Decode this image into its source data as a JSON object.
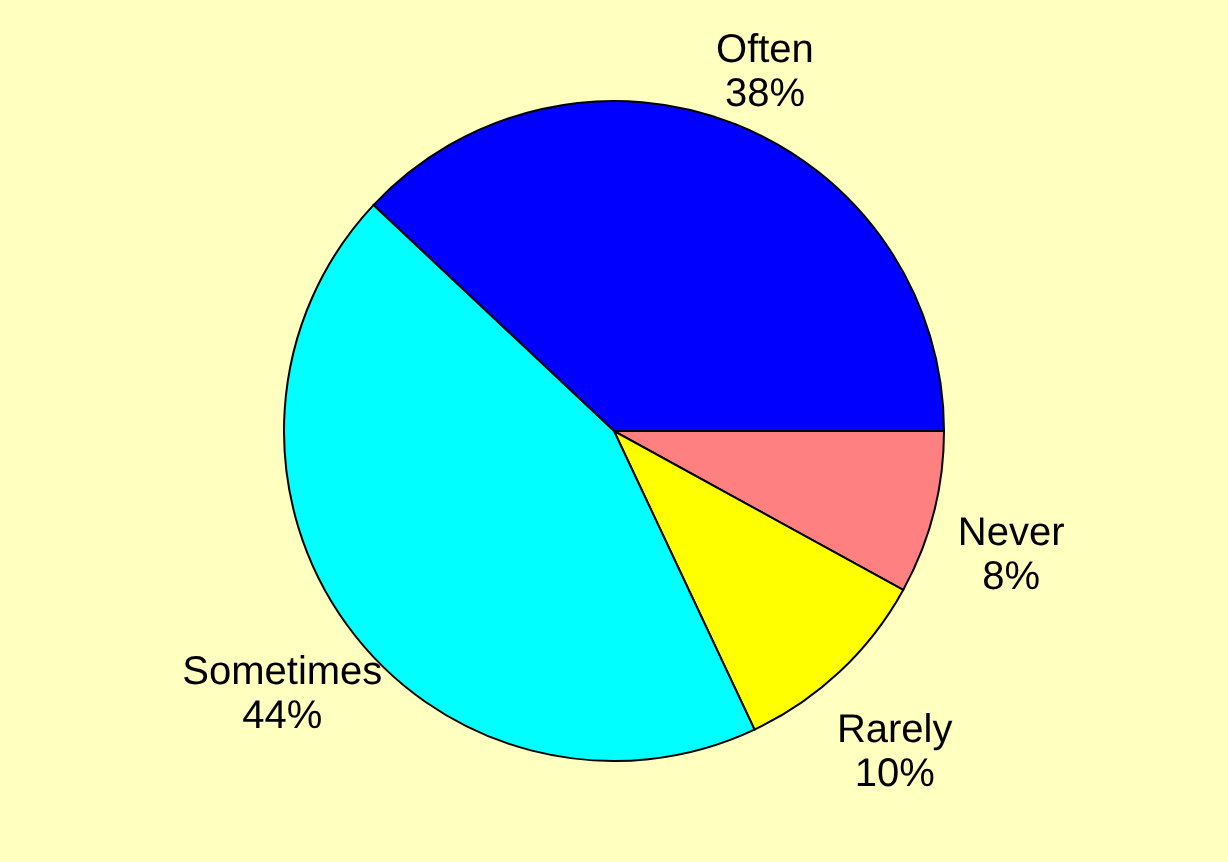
{
  "chart_data": {
    "type": "pie",
    "categories": [
      "Often",
      "Never",
      "Rarely",
      "Sometimes"
    ],
    "values": [
      38,
      8,
      10,
      44
    ],
    "colors": [
      "#0000ff",
      "#ff8080",
      "#ffff00",
      "#00ffff"
    ],
    "value_labels": [
      "38%",
      "8%",
      "10%",
      "44%"
    ],
    "legend": false
  }
}
